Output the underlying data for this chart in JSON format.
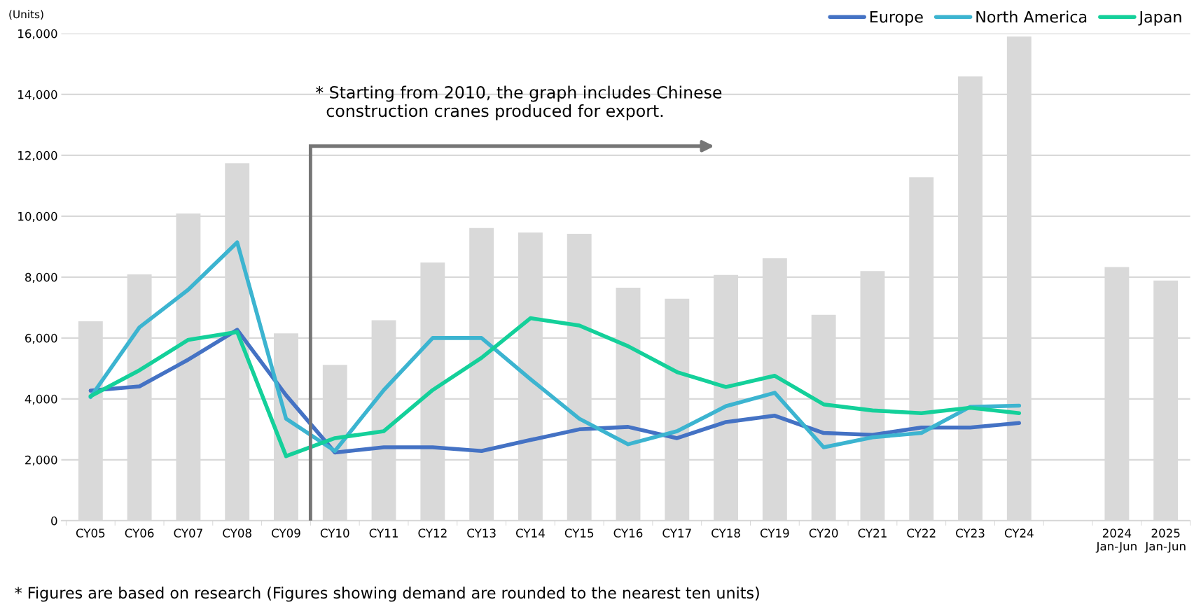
{
  "chart_data": {
    "type": "bar",
    "ylabel": "(Units)",
    "categories": [
      "CY05",
      "CY06",
      "CY07",
      "CY08",
      "CY09",
      "CY10",
      "CY11",
      "CY12",
      "CY13",
      "CY14",
      "CY15",
      "CY16",
      "CY17",
      "CY18",
      "CY19",
      "CY20",
      "CY21",
      "CY22",
      "CY23",
      "CY24",
      null,
      "2024\nJan-Jun",
      "2025\nJan-Jun"
    ],
    "series": [
      {
        "color": "#d9d9d9",
        "values": [
          6550,
          8090,
          10090,
          11740,
          6150,
          5120,
          6580,
          8480,
          9610,
          9460,
          9420,
          7650,
          7290,
          8070,
          8620,
          6760,
          8200,
          11280,
          14590,
          15900,
          null,
          8330,
          7890
        ]
      },
      {
        "type": "line",
        "name": "Europe",
        "color": "#4472c4",
        "values": [
          4270,
          4410,
          5290,
          6270,
          4120,
          2240,
          2410,
          2410,
          2290,
          2650,
          3000,
          3080,
          2710,
          3240,
          3450,
          2880,
          2820,
          3060,
          3060,
          3210,
          null,
          null,
          null
        ]
      },
      {
        "type": "line",
        "name": "North America",
        "color": "#3cb4d0",
        "values": [
          4060,
          6350,
          7590,
          9140,
          3350,
          2290,
          4290,
          6000,
          6000,
          4650,
          3350,
          2510,
          2940,
          3760,
          4200,
          2410,
          2740,
          2880,
          3740,
          3780,
          null,
          null,
          null
        ]
      },
      {
        "type": "line",
        "name": "Japan",
        "color": "#14d09a",
        "values": [
          4090,
          4940,
          5940,
          6200,
          2120,
          2710,
          2940,
          4290,
          5350,
          6650,
          6410,
          5730,
          4880,
          4390,
          4760,
          3820,
          3620,
          3530,
          3710,
          3530,
          null,
          null,
          null
        ]
      }
    ],
    "ylim": [
      0,
      16000
    ],
    "yticks": [
      {
        "value": 0,
        "label": "0"
      },
      {
        "value": 2000,
        "label": "2,000"
      },
      {
        "value": 4000,
        "label": "4,000"
      },
      {
        "value": 6000,
        "label": "6,000"
      },
      {
        "value": 8000,
        "label": "8,000"
      },
      {
        "value": 10000,
        "label": "10,000"
      },
      {
        "value": 12000,
        "label": "12,000"
      },
      {
        "value": 14000,
        "label": "14,000"
      },
      {
        "value": 16000,
        "label": "16,000"
      }
    ],
    "grid": "y",
    "legend": "top right",
    "marker": "none",
    "line_style": "solid",
    "annotations": [
      "* Starting from 2010, the graph includes Chinese\n  construction cranes produced for export.",
      "* Figures are based on research (Figures showing demand are rounded to the nearest ten units)"
    ]
  }
}
